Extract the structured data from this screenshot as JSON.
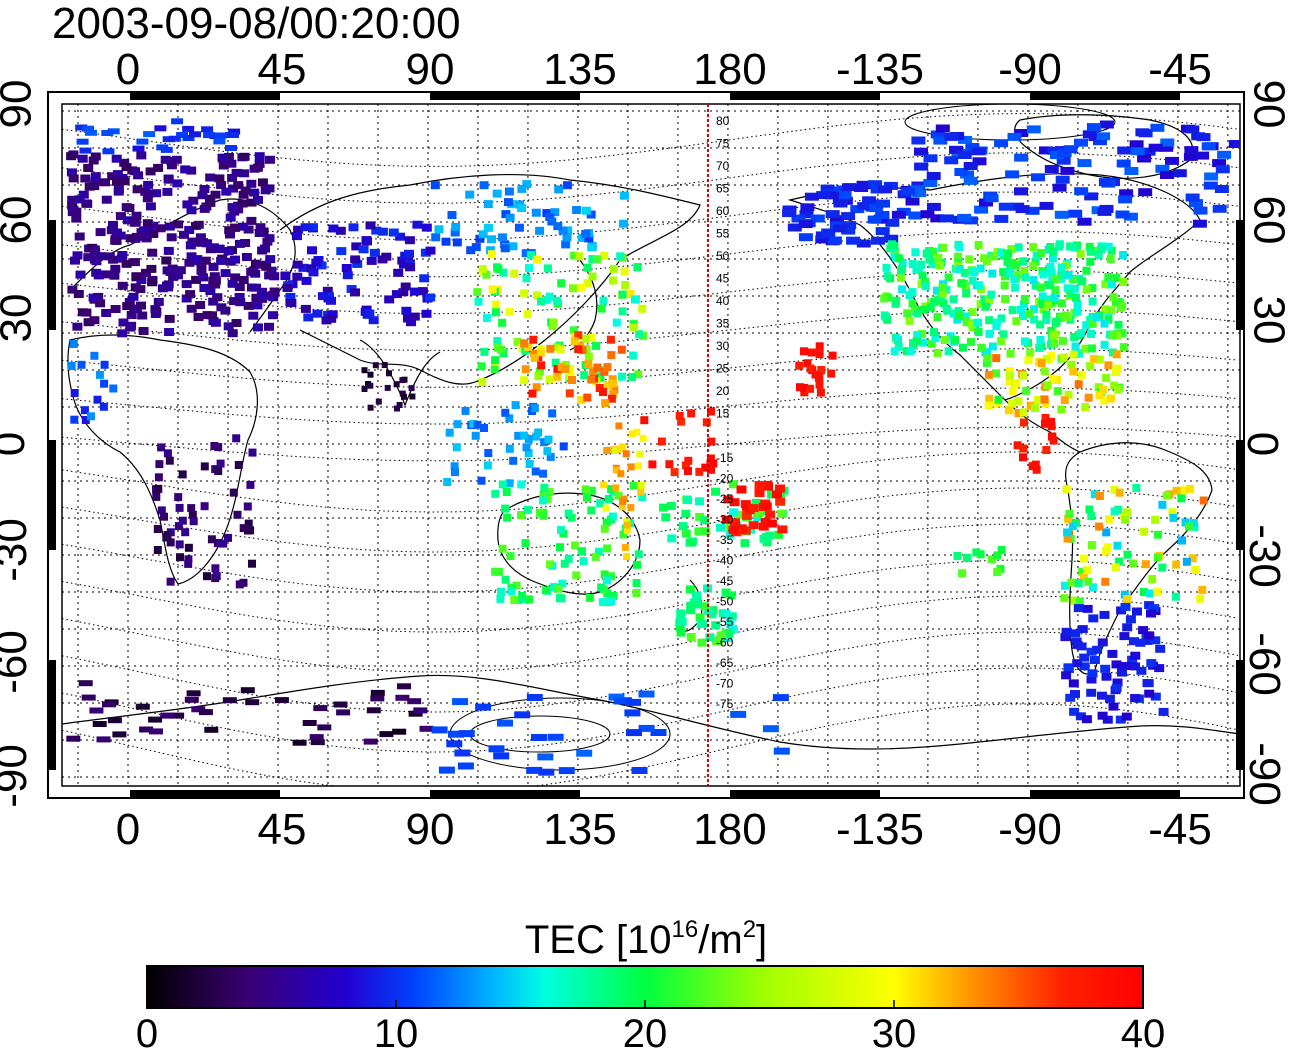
{
  "title": "2003-09-08/00:20:00",
  "map": {
    "lon_ticks": [
      "0",
      "45",
      "90",
      "135",
      "180",
      "-135",
      "-90",
      "-45"
    ],
    "lat_ticks": [
      "90",
      "60",
      "30",
      "0",
      "-30",
      "-60",
      "-90"
    ],
    "meridian_lon": 174,
    "meridian_lat_labels": [
      "80",
      "75",
      "70",
      "65",
      "60",
      "55",
      "50",
      "45",
      "40",
      "35",
      "30",
      "25",
      "20",
      "15",
      "-15",
      "-20",
      "-25",
      "-30",
      "-35",
      "-40",
      "-45",
      "-50",
      "-55",
      "-60",
      "-65",
      "-70",
      "-75"
    ],
    "colors": {
      "meridian": "#cc0000",
      "frame": "#000000",
      "grid": "#000000"
    }
  },
  "colorbar": {
    "label_main": "TEC  [10",
    "label_sup1": "16",
    "label_mid": "/m",
    "label_sup2": "2",
    "label_end": "]",
    "ticks": [
      "0",
      "10",
      "20",
      "30",
      "40"
    ],
    "min": 0,
    "max": 40,
    "colors": [
      "#000000",
      "#3a0070",
      "#2200d0",
      "#0044ff",
      "#00b8ff",
      "#00ffe0",
      "#00ff40",
      "#a0ff00",
      "#ffff00",
      "#ff9000",
      "#ff2000",
      "#ff0000"
    ]
  }
}
